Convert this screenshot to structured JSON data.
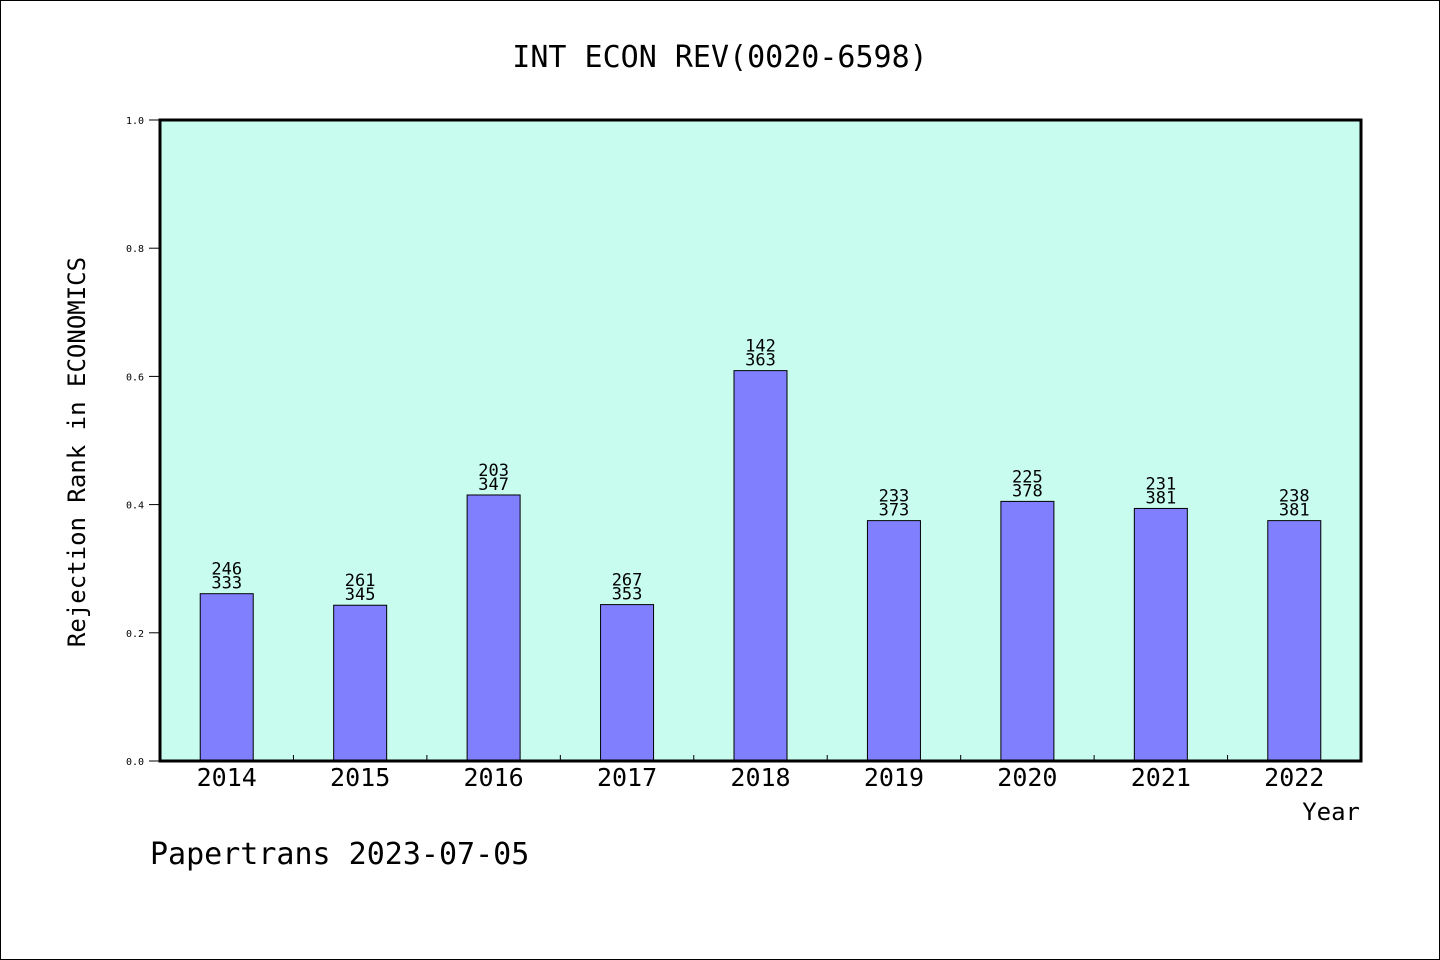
{
  "chart_data": {
    "type": "bar",
    "title": "INT ECON REV(0020-6598)",
    "xlabel": "Year",
    "ylabel": "Rejection Rank in ECONOMICS",
    "ylim": [
      0,
      1.0
    ],
    "yticks": [
      "0.0",
      "0.2",
      "0.4",
      "0.6",
      "0.8",
      "1.0"
    ],
    "categories": [
      "2014",
      "2015",
      "2016",
      "2017",
      "2018",
      "2019",
      "2020",
      "2021",
      "2022"
    ],
    "values": [
      0.261,
      0.243,
      0.415,
      0.244,
      0.609,
      0.375,
      0.405,
      0.394,
      0.375
    ],
    "labels_top": [
      "246",
      "261",
      "203",
      "267",
      "142",
      "233",
      "225",
      "231",
      "238"
    ],
    "labels_bottom": [
      "333",
      "345",
      "347",
      "353",
      "363",
      "373",
      "378",
      "381",
      "381"
    ],
    "grid": false,
    "colors": {
      "plot_background": "#c8fcee",
      "bar_fill": "#8080ff",
      "bar_stroke": "#000000",
      "axis": "#000000"
    }
  },
  "footer": {
    "watermark": "Papertrans 2023-07-05"
  }
}
